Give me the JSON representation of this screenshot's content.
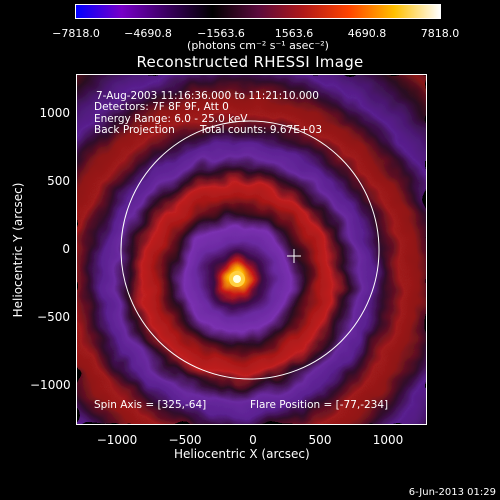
{
  "colorbar": {
    "tick_labels": [
      "−7818.0",
      "−4690.8",
      "−1563.6",
      "1563.6",
      "4690.8",
      "7818.0"
    ],
    "units": "(photons cm⁻² s⁻¹ asec⁻²)",
    "colors": [
      "#0000ff",
      "#7700c8",
      "#3a0060",
      "#000000",
      "#5a0a3c",
      "#b01818",
      "#ff4400",
      "#ffc000",
      "#ffffff"
    ]
  },
  "title": "Reconstructed RHESSI Image",
  "info": {
    "line1": "7-Aug-2003 11:16:36.000 to 11:21:10.000",
    "line2": "Detectors: 7F 8F 9F, Att 0",
    "line3": "Energy Range: 6.0 - 25.0 keV",
    "line4_left": "Back Projection",
    "line4_right": "Total counts: 9.67E+03"
  },
  "bottom_text": {
    "spin_axis": "Spin Axis = [325,-64]",
    "flare_position": "Flare Position = [-77,-234]"
  },
  "axes": {
    "xlabel": "Heliocentric X (arcsec)",
    "ylabel": "Heliocentric Y (arcsec)",
    "xticks": [
      "−1000",
      "−500",
      "0",
      "500",
      "1000"
    ],
    "yticks": [
      "1000",
      "500",
      "0",
      "−500",
      "−1000"
    ]
  },
  "footer": "6-Jun-2013 01:29"
}
